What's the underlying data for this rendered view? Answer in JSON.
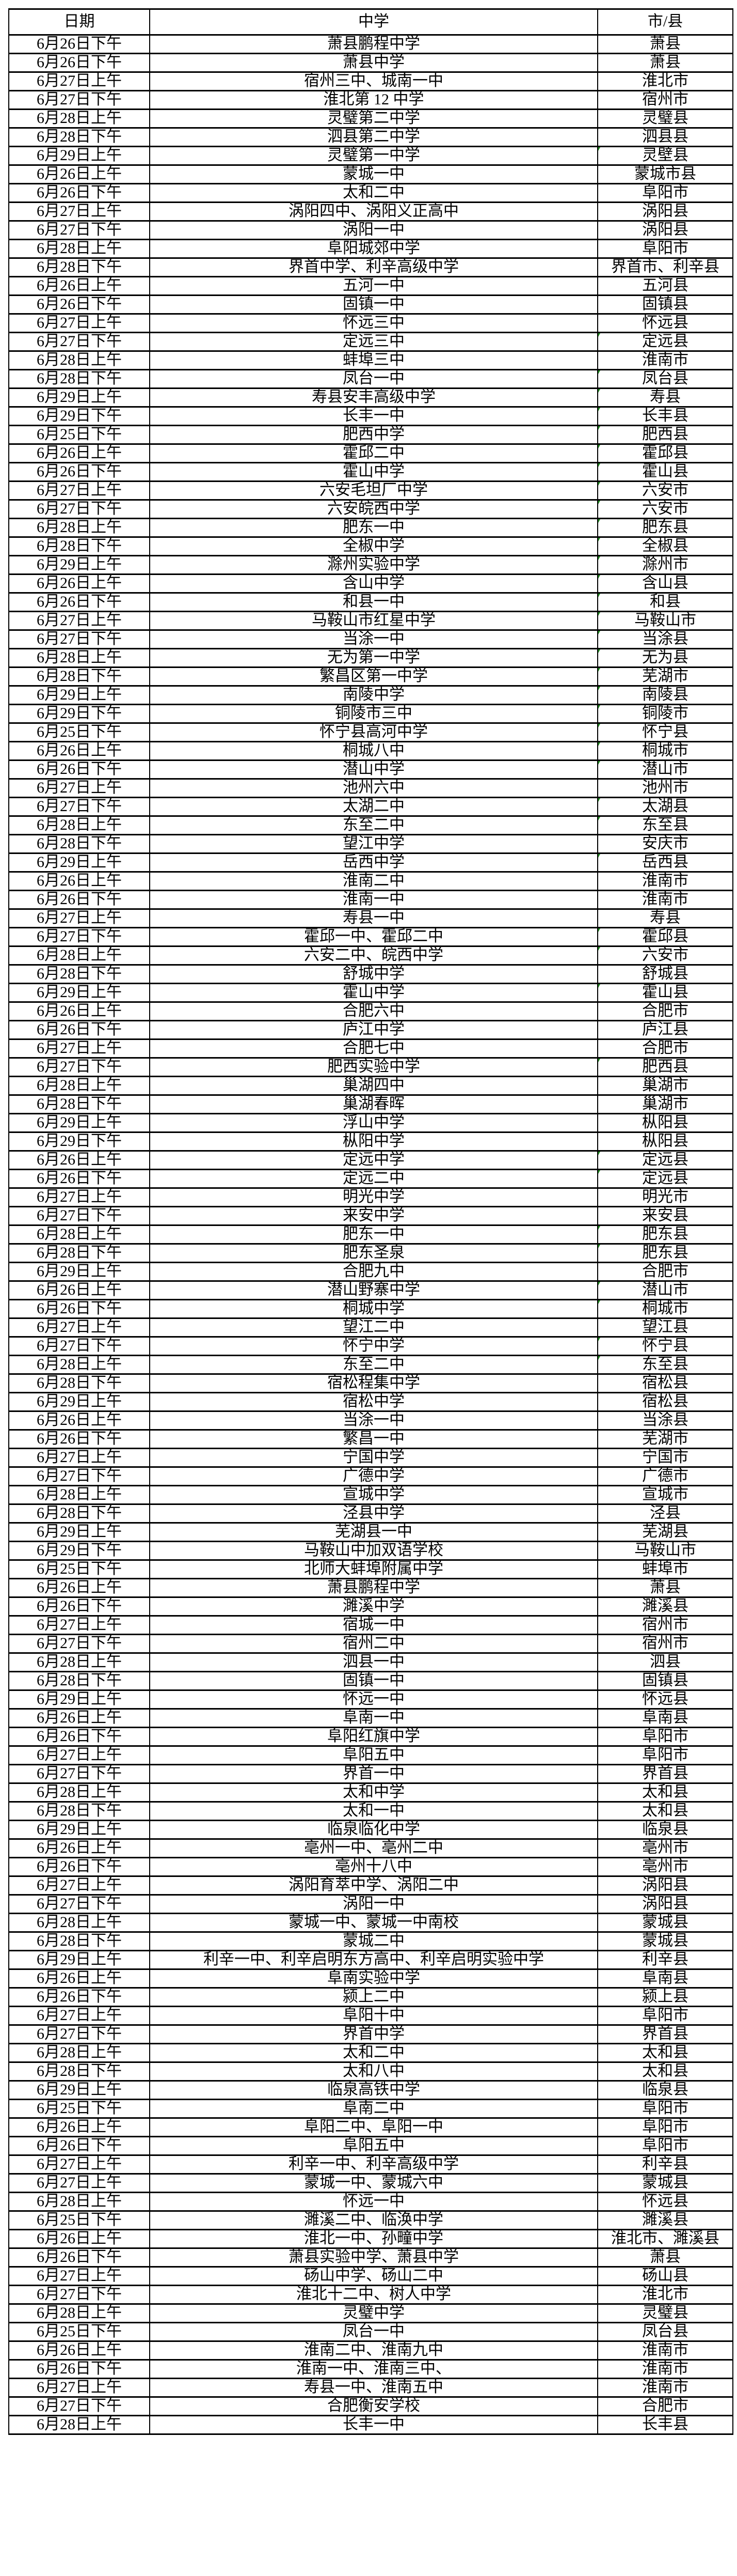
{
  "table": {
    "headers": {
      "date": "日期",
      "school": "中学",
      "city": "市/县"
    },
    "rows": [
      [
        "6月26日下午",
        "萧县鹏程中学",
        "萧县"
      ],
      [
        "6月26日下午",
        "萧县中学",
        "萧县"
      ],
      [
        "6月27日上午",
        "宿州三中、城南一中",
        "淮北市"
      ],
      [
        "6月27日下午",
        "淮北第 12 中学",
        "宿州市"
      ],
      [
        "6月28日上午",
        "灵璧第二中学",
        "灵璧县"
      ],
      [
        "6月28日下午",
        "泗县第二中学",
        "泗县县"
      ],
      [
        "6月29日上午",
        "灵璧第一中学",
        "灵壁县"
      ],
      [
        "6月26日上午",
        "蒙城一中",
        "蒙城市县"
      ],
      [
        "6月26日下午",
        "太和二中",
        "阜阳市"
      ],
      [
        "6月27日上午",
        "涡阳四中、涡阳义正高中",
        "涡阳县"
      ],
      [
        "6月27日下午",
        "涡阳一中",
        "涡阳县"
      ],
      [
        "6月28日上午",
        "阜阳城郊中学",
        "阜阳市"
      ],
      [
        "6月28日下午",
        "界首中学、利辛高级中学",
        "界首市、利辛县"
      ],
      [
        "6月26日上午",
        "五河一中",
        "五河县"
      ],
      [
        "6月26日下午",
        "固镇一中",
        "固镇县"
      ],
      [
        "6月27日上午",
        "怀远三中",
        "怀远县"
      ],
      [
        "6月27日下午",
        "定远三中",
        "定远县"
      ],
      [
        "6月28日上午",
        "蚌埠三中",
        "淮南市"
      ],
      [
        "6月28日下午",
        "凤台一中",
        "凤台县"
      ],
      [
        "6月29日上午",
        "寿县安丰高级中学",
        "寿县"
      ],
      [
        "6月29日下午",
        "长丰一中",
        "长丰县"
      ],
      [
        "6月25日下午",
        "肥西中学",
        "肥西县"
      ],
      [
        "6月26日上午",
        "霍邱二中",
        "霍邱县"
      ],
      [
        "6月26日下午",
        "霍山中学",
        "霍山县"
      ],
      [
        "6月27日上午",
        "六安毛坦厂中学",
        "六安市"
      ],
      [
        "6月27日下午",
        "六安皖西中学",
        "六安市"
      ],
      [
        "6月28日上午",
        "肥东一中",
        "肥东县"
      ],
      [
        "6月28日下午",
        "全椒中学",
        "全椒县"
      ],
      [
        "6月29日上午",
        "滁州实验中学",
        "滁州市"
      ],
      [
        "6月26日上午",
        "含山中学",
        "含山县"
      ],
      [
        "6月26日下午",
        "和县一中",
        "和县"
      ],
      [
        "6月27日上午",
        "马鞍山市红星中学",
        "马鞍山市"
      ],
      [
        "6月27日下午",
        "当涂一中",
        "当涂县"
      ],
      [
        "6月28日上午",
        "无为第一中学",
        "无为县"
      ],
      [
        "6月28日下午",
        "繁昌区第一中学",
        "芜湖市"
      ],
      [
        "6月29日上午",
        "南陵中学",
        "南陵县"
      ],
      [
        "6月29日下午",
        "铜陵市三中",
        "铜陵市"
      ],
      [
        "6月25日下午",
        "怀宁县高河中学",
        "怀宁县"
      ],
      [
        "6月26日上午",
        "桐城八中",
        "桐城市"
      ],
      [
        "6月26日下午",
        "潜山中学",
        "潜山市"
      ],
      [
        "6月27日上午",
        "池州六中",
        "池州市"
      ],
      [
        "6月27日下午",
        "太湖二中",
        "太湖县"
      ],
      [
        "6月28日上午",
        "东至二中",
        "东至县"
      ],
      [
        "6月28日下午",
        "望江中学",
        "安庆市"
      ],
      [
        "6月29日上午",
        "岳西中学",
        "岳西县"
      ],
      [
        "6月26日上午",
        "淮南二中",
        "淮南市"
      ],
      [
        "6月26日下午",
        "淮南一中",
        "淮南市"
      ],
      [
        "6月27日上午",
        "寿县一中",
        "寿县"
      ],
      [
        "6月27日下午",
        "霍邱一中、霍邱二中",
        "霍邱县"
      ],
      [
        "6月28日上午",
        "六安二中、皖西中学",
        "六安市"
      ],
      [
        "6月28日下午",
        "舒城中学",
        "舒城县"
      ],
      [
        "6月29日上午",
        "霍山中学",
        "霍山县"
      ],
      [
        "6月26日上午",
        "合肥六中",
        "合肥市"
      ],
      [
        "6月26日下午",
        "庐江中学",
        "庐江县"
      ],
      [
        "6月27日上午",
        "合肥七中",
        "合肥市"
      ],
      [
        "6月27日下午",
        "肥西实验中学",
        "肥西县"
      ],
      [
        "6月28日上午",
        "巢湖四中",
        "巢湖市"
      ],
      [
        "6月28日下午",
        "巢湖春晖",
        "巢湖市"
      ],
      [
        "6月29日上午",
        "浮山中学",
        "枞阳县"
      ],
      [
        "6月29日下午",
        "枞阳中学",
        "枞阳县"
      ],
      [
        "6月26日上午",
        "定远中学",
        "定远县"
      ],
      [
        "6月26日下午",
        "定远二中",
        "定远县"
      ],
      [
        "6月27日上午",
        "明光中学",
        "明光市"
      ],
      [
        "6月27日下午",
        "来安中学",
        "来安县"
      ],
      [
        "6月28日上午",
        "肥东一中",
        "肥东县"
      ],
      [
        "6月28日下午",
        "肥东圣泉",
        "肥东县"
      ],
      [
        "6月29日上午",
        "合肥九中",
        "合肥市"
      ],
      [
        "6月26日上午",
        "潜山野寨中学",
        "潜山市"
      ],
      [
        "6月26日下午",
        "桐城中学",
        "桐城市"
      ],
      [
        "6月27日上午",
        "望江二中",
        "望江县"
      ],
      [
        "6月27日下午",
        "怀宁中学",
        "怀宁县"
      ],
      [
        "6月28日上午",
        "东至二中",
        "东至县"
      ],
      [
        "6月28日下午",
        "宿松程集中学",
        "宿松县"
      ],
      [
        "6月29日上午",
        "宿松中学",
        "宿松县"
      ],
      [
        "6月26日上午",
        "当涂一中",
        "当涂县"
      ],
      [
        "6月26日下午",
        "繁昌一中",
        "芜湖市"
      ],
      [
        "6月27日上午",
        "宁国中学",
        "宁国市"
      ],
      [
        "6月27日下午",
        "广德中学",
        "广德市"
      ],
      [
        "6月28日上午",
        "宣城中学",
        "宣城市"
      ],
      [
        "6月28日下午",
        "泾县中学",
        "泾县"
      ],
      [
        "6月29日上午",
        "芜湖县一中",
        "芜湖县"
      ],
      [
        "6月29日下午",
        "马鞍山中加双语学校",
        "马鞍山市"
      ],
      [
        "6月25日下午",
        "北师大蚌埠附属中学",
        "蚌埠市"
      ],
      [
        "6月26日上午",
        "萧县鹏程中学",
        "萧县"
      ],
      [
        "6月26日下午",
        "濉溪中学",
        "濉溪县"
      ],
      [
        "6月27日上午",
        "宿城一中",
        "宿州市"
      ],
      [
        "6月27日下午",
        "宿州二中",
        "宿州市"
      ],
      [
        "6月28日上午",
        "泗县一中",
        "泗县"
      ],
      [
        "6月28日下午",
        "固镇一中",
        "固镇县"
      ],
      [
        "6月29日上午",
        "怀远一中",
        "怀远县"
      ],
      [
        "6月26日上午",
        "阜南一中",
        "阜南县"
      ],
      [
        "6月26日下午",
        "阜阳红旗中学",
        "阜阳市"
      ],
      [
        "6月27日上午",
        "阜阳五中",
        "阜阳市"
      ],
      [
        "6月27日下午",
        "界首一中",
        "界首县"
      ],
      [
        "6月28日上午",
        "太和中学",
        "太和县"
      ],
      [
        "6月28日下午",
        "太和一中",
        "太和县"
      ],
      [
        "6月29日上午",
        "临泉临化中学",
        "临泉县"
      ],
      [
        "6月26日上午",
        "亳州一中、亳州二中",
        "亳州市"
      ],
      [
        "6月26日下午",
        "亳州十八中",
        "亳州市"
      ],
      [
        "6月27日上午",
        "涡阳育萃中学、涡阳二中",
        "涡阳县"
      ],
      [
        "6月27日下午",
        "涡阳一中",
        "涡阳县"
      ],
      [
        "6月28日上午",
        "蒙城一中、蒙城一中南校",
        "蒙城县"
      ],
      [
        "6月28日下午",
        "蒙城二中",
        "蒙城县"
      ],
      [
        "6月29日上午",
        "利辛一中、利辛启明东方高中、利辛启明实验中学",
        "利辛县"
      ],
      [
        "6月26日上午",
        "阜南实验中学",
        "阜南县"
      ],
      [
        "6月26日下午",
        "颍上二中",
        "颍上县"
      ],
      [
        "6月27日上午",
        "阜阳十中",
        "阜阳市"
      ],
      [
        "6月27日下午",
        "界首中学",
        "界首县"
      ],
      [
        "6月28日上午",
        "太和二中",
        "太和县"
      ],
      [
        "6月28日下午",
        "太和八中",
        "太和县"
      ],
      [
        "6月29日上午",
        "临泉高铁中学",
        "临泉县"
      ],
      [
        "6月25日下午",
        "阜南二中",
        "阜阳市"
      ],
      [
        "6月26日上午",
        "阜阳二中、阜阳一中",
        "阜阳市"
      ],
      [
        "6月26日下午",
        "阜阳五中",
        "阜阳市"
      ],
      [
        "6月27日上午",
        "利辛一中、利辛高级中学",
        "利辛县"
      ],
      [
        "6月27日上午",
        "蒙城一中、蒙城六中",
        "蒙城县"
      ],
      [
        "6月28日上午",
        "怀远一中",
        "怀远县"
      ],
      [
        "6月25日下午",
        "濉溪二中、临涣中学",
        "濉溪县"
      ],
      [
        "6月26日上午",
        "淮北一中、孙疃中学",
        "淮北市、濉溪县"
      ],
      [
        "6月26日下午",
        "萧县实验中学、萧县中学",
        "萧县"
      ],
      [
        "6月27日上午",
        "砀山中学、砀山二中",
        "砀山县"
      ],
      [
        "6月27日下午",
        "淮北十二中、树人中学",
        "淮北市"
      ],
      [
        "6月28日上午",
        "灵璧中学",
        "灵璧县"
      ],
      [
        "6月25日下午",
        "凤台一中",
        "凤台县"
      ],
      [
        "6月26日上午",
        "淮南二中、淮南九中",
        "淮南市"
      ],
      [
        "6月26日下午",
        "淮南一中、淮南三中、",
        "淮南市"
      ],
      [
        "6月27日上午",
        "寿县一中、淮南五中",
        "淮南市"
      ],
      [
        "6月27日下午",
        "合肥衡安学校",
        "合肥市"
      ],
      [
        "6月28日上午",
        "长丰一中",
        "长丰县"
      ]
    ]
  },
  "colors": {
    "error_marker": "#1e8c1e"
  }
}
